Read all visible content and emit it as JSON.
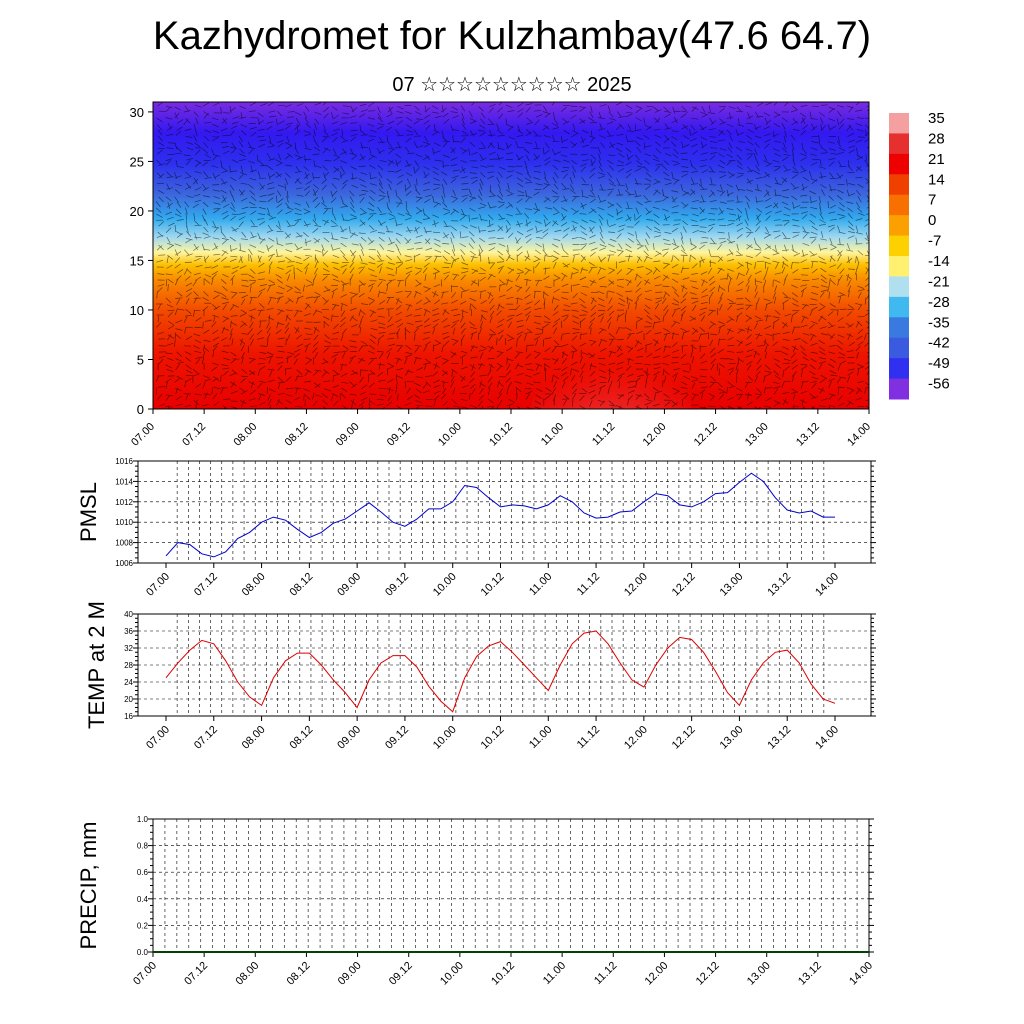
{
  "title": "Kazhydromet for Kulzhambay(47.6 64.7)",
  "subtitle": "07 ☆☆☆☆☆☆☆☆☆ 2025",
  "time_labels": [
    "07.00",
    "07.12",
    "08.00",
    "08.12",
    "09.00",
    "09.12",
    "10.00",
    "10.12",
    "11.00",
    "11.12",
    "12.00",
    "12.12",
    "13.00",
    "13.12",
    "14.00"
  ],
  "chart_data": [
    {
      "type": "heatmap",
      "name": "vertical cross-section",
      "x_labels": [
        "07.00",
        "07.12",
        "08.00",
        "08.12",
        "09.00",
        "09.12",
        "10.00",
        "10.12",
        "11.00",
        "11.12",
        "12.00",
        "12.12",
        "13.00",
        "13.12",
        "14.00"
      ],
      "ylim": [
        0,
        31
      ],
      "yticks": [
        0,
        5,
        10,
        15,
        20,
        25,
        30
      ],
      "colorbar_labels": [
        "35",
        "28",
        "21",
        "14",
        "7",
        "0",
        "-7",
        "-14",
        "-21",
        "-28",
        "-35",
        "-42",
        "-49",
        "-56"
      ],
      "colorbar_colors": [
        "#f4a0a0",
        "#e63030",
        "#ee0000",
        "#f04000",
        "#f87000",
        "#fba000",
        "#fdd000",
        "#fff070",
        "#b0e0f0",
        "#40b8f0",
        "#3a7ae0",
        "#3a5ae0",
        "#3030f0",
        "#8030e0"
      ]
    },
    {
      "type": "line",
      "ylabel": "PMSL",
      "ylim": [
        1006,
        1016
      ],
      "yticks": [
        1006,
        1008,
        1010,
        1012,
        1014,
        1016
      ],
      "x_labels": [
        "07.00",
        "07.12",
        "08.00",
        "08.12",
        "09.00",
        "09.12",
        "10.00",
        "10.12",
        "11.00",
        "11.12",
        "12.00",
        "12.12",
        "13.00",
        "13.12",
        "14.00"
      ],
      "color": "#0000cc",
      "series": [
        {
          "values": [
            1006.7,
            1008.0,
            1007.8,
            1006.9,
            1006.6,
            1007.1,
            1008.4,
            1009.0,
            1010.0,
            1010.5,
            1010.2,
            1009.3,
            1008.5,
            1009.0,
            1009.9,
            1010.3,
            1011.1,
            1011.9,
            1011.0,
            1010.0,
            1009.6,
            1010.3,
            1011.3,
            1011.3,
            1012.0,
            1013.6,
            1013.4,
            1012.4,
            1011.5,
            1011.7,
            1011.6,
            1011.3,
            1011.7,
            1012.6,
            1012.0,
            1010.9,
            1010.4,
            1010.5,
            1011.0,
            1011.1,
            1012.0,
            1012.8,
            1012.6,
            1011.7,
            1011.5,
            1012.0,
            1012.8,
            1012.9,
            1013.9,
            1014.8,
            1014.0,
            1012.4,
            1011.2,
            1010.9,
            1011.1,
            1010.5,
            1010.5
          ]
        }
      ]
    },
    {
      "type": "line",
      "ylabel": "TEMP at 2 M",
      "ylim": [
        16,
        40
      ],
      "yticks": [
        16,
        20,
        24,
        28,
        32,
        36,
        40
      ],
      "x_labels": [
        "07.00",
        "07.12",
        "08.00",
        "08.12",
        "09.00",
        "09.12",
        "10.00",
        "10.12",
        "11.00",
        "11.12",
        "12.00",
        "12.12",
        "13.00",
        "13.12",
        "14.00"
      ],
      "color": "#dd0000",
      "series": [
        {
          "values": [
            25.0,
            28.5,
            31.5,
            33.8,
            33.0,
            29.0,
            24.0,
            20.5,
            18.5,
            25.0,
            29.0,
            30.8,
            30.8,
            28.0,
            24.5,
            21.5,
            18.0,
            24.5,
            28.5,
            30.2,
            30.2,
            27.5,
            23.0,
            19.5,
            17.0,
            25.0,
            30.0,
            32.5,
            33.5,
            31.0,
            28.0,
            25.0,
            22.0,
            28.0,
            33.0,
            35.5,
            36.0,
            33.0,
            28.5,
            24.5,
            22.8,
            28.0,
            32.0,
            34.5,
            34.0,
            31.0,
            26.5,
            21.5,
            18.5,
            24.5,
            28.5,
            31.0,
            31.5,
            28.5,
            23.5,
            20.0,
            19.0
          ]
        }
      ]
    },
    {
      "type": "bar",
      "ylabel": "PRECIP, mm",
      "ylim": [
        0.0,
        1.0
      ],
      "yticks": [
        "0.0",
        "0.2",
        "0.4",
        "0.6",
        "0.8",
        "1.0"
      ],
      "x_labels": [
        "07.00",
        "07.12",
        "08.00",
        "08.12",
        "09.00",
        "09.12",
        "10.00",
        "10.12",
        "11.00",
        "11.12",
        "12.00",
        "12.12",
        "13.00",
        "13.12",
        "14.00"
      ],
      "series": [
        {
          "values": [
            0,
            0,
            0,
            0,
            0,
            0,
            0,
            0,
            0,
            0,
            0,
            0,
            0,
            0,
            0,
            0,
            0,
            0,
            0,
            0,
            0,
            0,
            0,
            0,
            0,
            0,
            0,
            0
          ]
        }
      ]
    }
  ]
}
